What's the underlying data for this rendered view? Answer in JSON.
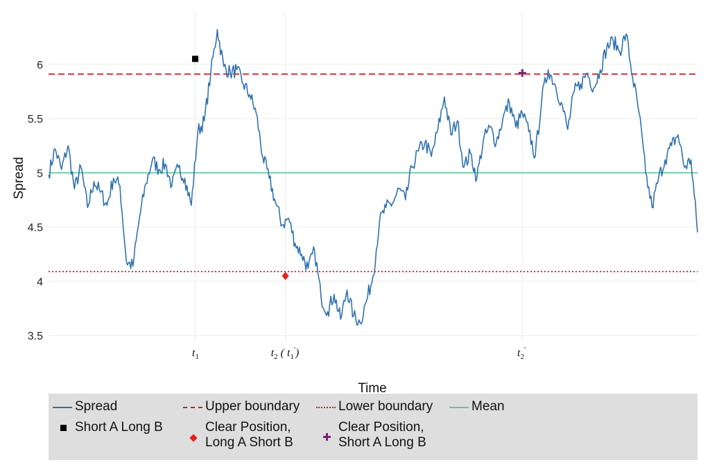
{
  "chart_data": {
    "type": "line",
    "xlabel": "Time",
    "ylabel": "Spread",
    "ylim": [
      3.45,
      6.35
    ],
    "yticks": [
      "3.5",
      "4",
      "4.5",
      "5",
      "5.5",
      "6"
    ],
    "grid": true,
    "x_range": [
      0,
      100
    ],
    "series": [
      {
        "name": "Spread",
        "color": "#2f72b0",
        "x": [
          0,
          1,
          2,
          3,
          4,
          5,
          6,
          7,
          8,
          9,
          10,
          11,
          12,
          13,
          14,
          15,
          16,
          17,
          18,
          19,
          20,
          21,
          22,
          23,
          24,
          25,
          26,
          27,
          28,
          29,
          30,
          31,
          32,
          33,
          34,
          35,
          36,
          37,
          38,
          39,
          40,
          41,
          42,
          43,
          44,
          45,
          46,
          47,
          48,
          49,
          50,
          51,
          52,
          53,
          54,
          55,
          56,
          57,
          58,
          59,
          60,
          61,
          62,
          63,
          64,
          65,
          66,
          67,
          68,
          69,
          70,
          71,
          72,
          73,
          74,
          75,
          76,
          77,
          78,
          79,
          80,
          81,
          82,
          83,
          84,
          85,
          86,
          87,
          88,
          89,
          90,
          91,
          92,
          93,
          94,
          95,
          96,
          97,
          98,
          99,
          100
        ],
        "values": [
          4.98,
          5.22,
          5.03,
          5.25,
          4.85,
          5.05,
          4.68,
          4.92,
          4.82,
          4.7,
          4.95,
          4.88,
          4.18,
          4.14,
          4.58,
          4.9,
          5.12,
          5.03,
          5.08,
          4.88,
          5.05,
          4.95,
          4.7,
          5.38,
          5.48,
          5.92,
          6.32,
          5.98,
          5.92,
          5.95,
          5.82,
          5.72,
          5.55,
          5.15,
          4.95,
          4.72,
          4.52,
          4.58,
          4.35,
          4.25,
          4.12,
          4.28,
          3.85,
          3.72,
          3.88,
          3.65,
          3.92,
          3.68,
          3.62,
          3.82,
          4.05,
          4.55,
          4.68,
          4.72,
          4.85,
          4.75,
          5.05,
          5.2,
          5.28,
          5.15,
          5.4,
          5.7,
          5.35,
          5.48,
          5.05,
          5.18,
          4.95,
          5.3,
          5.42,
          5.28,
          5.5,
          5.65,
          5.42,
          5.55,
          5.38,
          5.15,
          5.68,
          5.95,
          5.82,
          5.65,
          5.4,
          5.75,
          5.82,
          5.92,
          5.78,
          5.95,
          6.15,
          6.22,
          6.12,
          6.28,
          5.88,
          5.55,
          5.0,
          4.68,
          4.95,
          5.12,
          5.25,
          5.35,
          5.05,
          5.12,
          4.45
        ]
      },
      {
        "name": "Upper boundary",
        "color": "#c8202f",
        "y": 5.91
      },
      {
        "name": "Lower boundary",
        "color": "#c8202f",
        "y": 4.09
      },
      {
        "name": "Mean",
        "color": "#63c4a0",
        "y": 5.0
      }
    ],
    "markers": [
      {
        "name": "Short A Long B",
        "x": 22.6,
        "y": 6.05,
        "color": "#000000",
        "shape": "square"
      },
      {
        "name": "Clear Position, Long A Short B",
        "x": 36.5,
        "y": 4.05,
        "color": "#e8201c",
        "shape": "diamond"
      },
      {
        "name": "Clear Position, Short A Long B",
        "x": 73.0,
        "y": 5.92,
        "color": "#7a1f7a",
        "shape": "plus"
      }
    ],
    "event_ticks": [
      {
        "x": 22.6,
        "main": "t",
        "sub": "1",
        "suffix": ""
      },
      {
        "x": 36.5,
        "main": "t",
        "sub": "2",
        "suffix": "( t",
        "sub2": "1",
        "prime": "'",
        "close": ")"
      },
      {
        "x": 73.0,
        "main": "t",
        "sub": "2",
        "prime": "'"
      }
    ]
  },
  "legend": {
    "spread": "Spread",
    "upper": "Upper boundary",
    "lower": "Lower boundary",
    "mean": "Mean",
    "short_a": "Short A Long B",
    "clear_long_line1": "Clear Position,",
    "clear_long_line2": "Long A Short B",
    "clear_short_line1": "Clear Position,",
    "clear_short_line2": "Short A Long B"
  }
}
